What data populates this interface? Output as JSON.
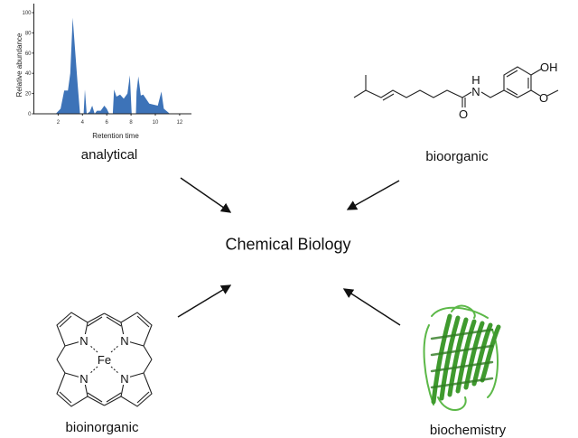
{
  "center_label": "Chemical Biology",
  "nodes": {
    "analytical": "analytical",
    "bioorganic": "bioorganic",
    "bioinorganic": "bioinorganic",
    "biochemistry": "biochemistry"
  },
  "molecule_atoms": {
    "nh_n": "N",
    "nh_h": "H",
    "carbonyl_o": "O",
    "oh": "OH",
    "methoxy_o": "O"
  },
  "porphyrin_atoms": {
    "metal": "Fe",
    "nitrogen": "N"
  },
  "colors": {
    "chart_fill": "#3d73b8",
    "protein": "#3f9a2e",
    "arrow": "#111111"
  },
  "chart_data": {
    "type": "area",
    "xlabel": "Retention time",
    "ylabel": "Relative abundance",
    "xlim": [
      0,
      13
    ],
    "ylim": [
      0,
      105
    ],
    "xticks": [
      2,
      4,
      6,
      8,
      10,
      12
    ],
    "yticks": [
      0,
      20,
      40,
      60,
      80,
      100
    ],
    "grid": false,
    "x": [
      1.8,
      2.2,
      2.5,
      2.8,
      3.0,
      3.2,
      3.6,
      3.8,
      4.1,
      4.2,
      4.35,
      4.6,
      4.8,
      5.0,
      5.2,
      5.5,
      5.8,
      6.0,
      6.2,
      6.5,
      6.6,
      6.8,
      7.1,
      7.4,
      7.7,
      7.9,
      8.05,
      8.4,
      8.45,
      8.6,
      8.8,
      9.0,
      9.5,
      10.2,
      10.5,
      10.7,
      11.2
    ],
    "y": [
      0,
      5,
      23,
      23,
      40,
      95,
      30,
      0,
      0,
      24,
      0,
      2,
      8,
      0,
      3,
      3,
      8,
      5,
      0,
      0,
      24,
      17,
      19,
      15,
      20,
      38,
      0,
      0,
      22,
      37,
      18,
      19,
      10,
      8,
      22,
      5,
      0
    ]
  }
}
